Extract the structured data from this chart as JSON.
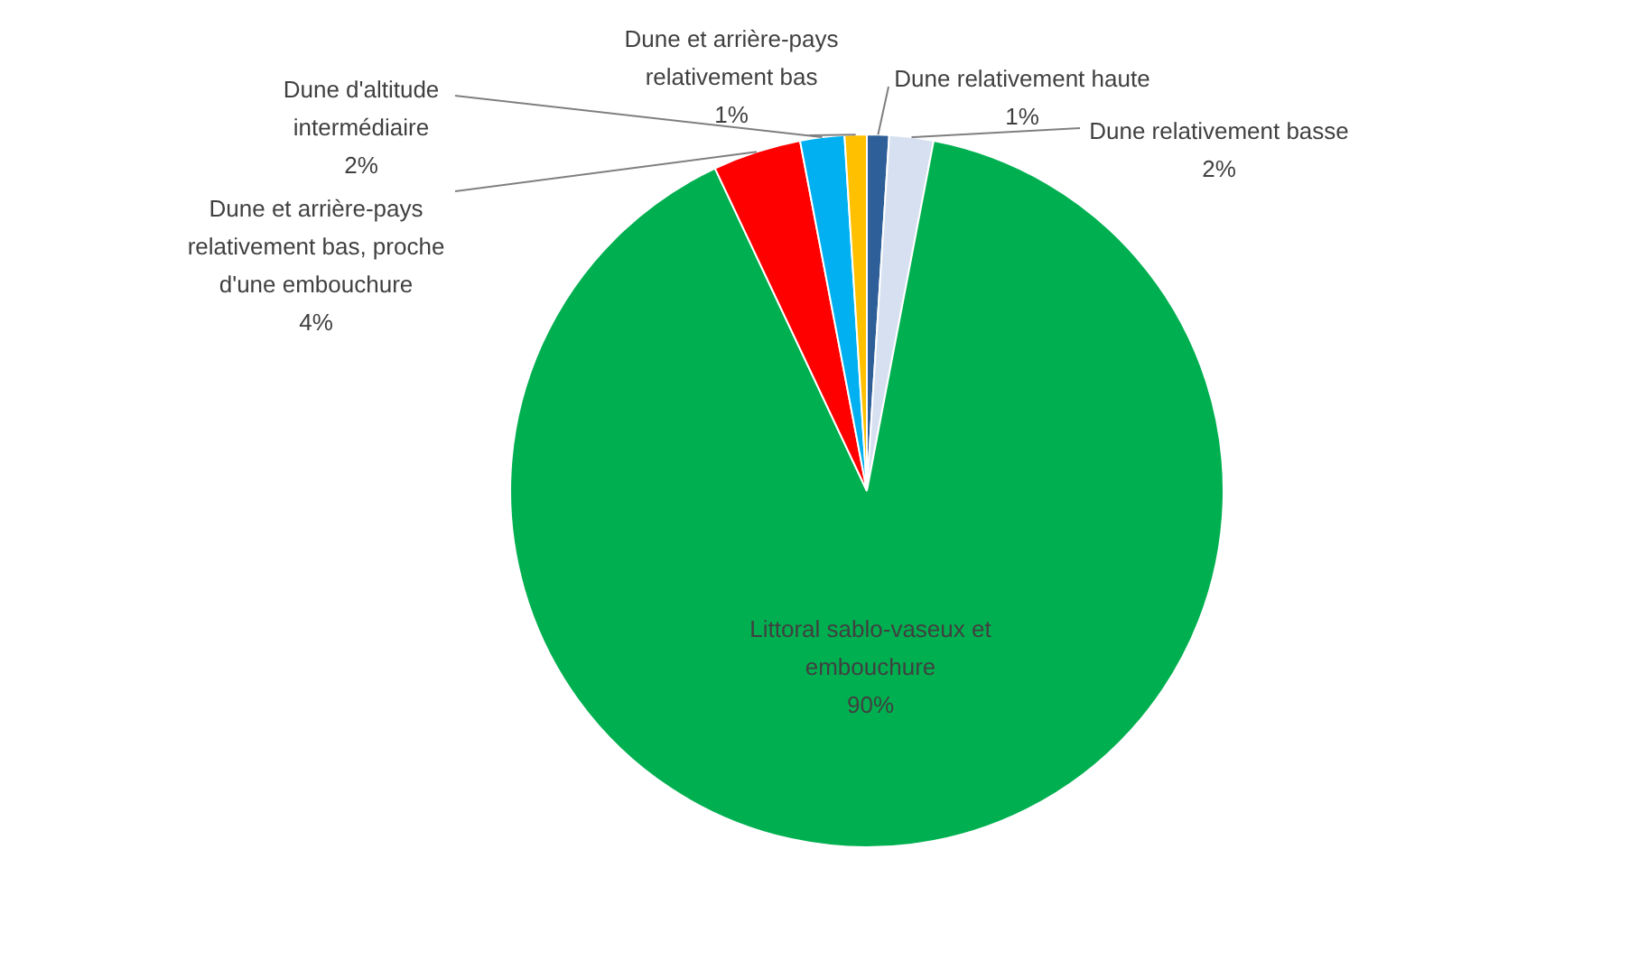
{
  "chart_data": {
    "type": "pie",
    "categories": [
      "Dune relativement haute",
      "Dune relativement basse",
      "Littoral sablo-vaseux et embouchure",
      "Dune et arrière-pays relativement bas, proche d'une embouchure",
      "Dune d'altitude intermédiaire",
      "Dune et arrière-pays relativement bas"
    ],
    "values": [
      1,
      2,
      90,
      4,
      2,
      1
    ],
    "colors": [
      "#2f5f98",
      "#d6e0f0",
      "#00b050",
      "#ff0000",
      "#00b0f0",
      "#ffc000"
    ],
    "value_labels": [
      "1%",
      "2%",
      "90%",
      "4%",
      "2%",
      "1%"
    ],
    "legend": false
  }
}
